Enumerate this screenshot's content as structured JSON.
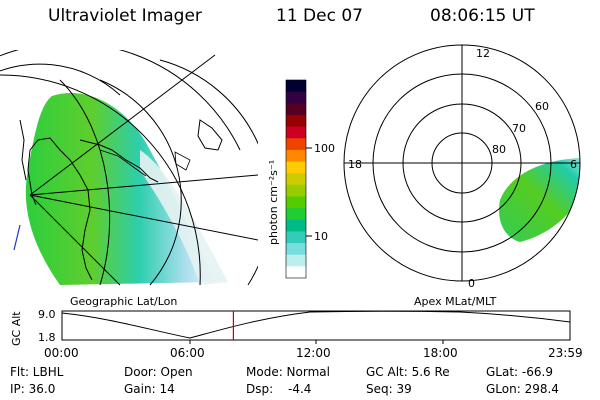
{
  "header": {
    "instrument": "Ultraviolet Imager",
    "date": "11 Dec 07",
    "time": "08:06:15 UT"
  },
  "geo_panel": {
    "caption": "Geographic Lat/Lon"
  },
  "mag_panel": {
    "caption": "Apex MLat/MLT",
    "mlt_labels": {
      "top": "12",
      "left": "18",
      "right": "6",
      "bottom": "0"
    },
    "lat_labels": [
      "60",
      "70",
      "80"
    ]
  },
  "colorbar": {
    "label": "photon cm⁻²s⁻¹",
    "ticks": [
      "100",
      "10"
    ],
    "colors": [
      "#000033",
      "#330044",
      "#550022",
      "#990000",
      "#cc0022",
      "#ee4400",
      "#ff8800",
      "#ffcc00",
      "#cccc00",
      "#99cc00",
      "#55cc00",
      "#22cc33",
      "#00bb88",
      "#33ccbb",
      "#77dddd",
      "#bbeeee",
      "#ffffff"
    ]
  },
  "altitude_plot": {
    "ylabel": "GC Alt",
    "yticks": [
      "9.0",
      "1.8"
    ],
    "xticks": [
      "00:00",
      "06:00",
      "12:00",
      "18:00",
      "23:59"
    ],
    "current_marker_hours": 8.1
  },
  "footer": {
    "row1": [
      "Flt: LBHL",
      "Door: Open",
      "Mode: Normal",
      "GC Alt: 5.6 Re",
      "GLat: -66.9"
    ],
    "row2": [
      "IP: 36.0",
      "Gain: 14",
      "Dsp:",
      "-4.4",
      "Seq: 39",
      "GLon: 298.4"
    ]
  }
}
